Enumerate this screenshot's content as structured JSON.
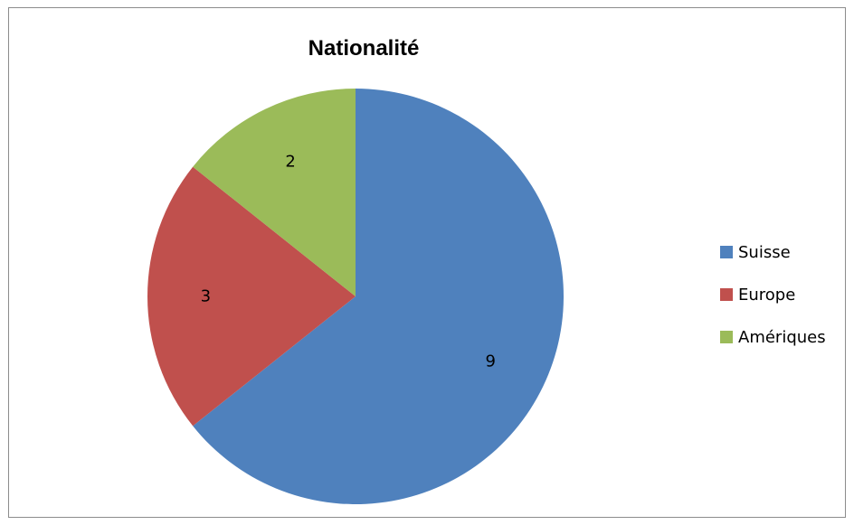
{
  "chart_data": {
    "type": "pie",
    "title": "Nationalité",
    "categories": [
      "Suisse",
      "Europe",
      "Amériques"
    ],
    "values": [
      9,
      3,
      2
    ],
    "colors": [
      "#4f81bd",
      "#c0504d",
      "#9bbb59"
    ],
    "start_angle_deg": 0,
    "direction": "clockwise",
    "data_labels": true,
    "legend": "right"
  }
}
